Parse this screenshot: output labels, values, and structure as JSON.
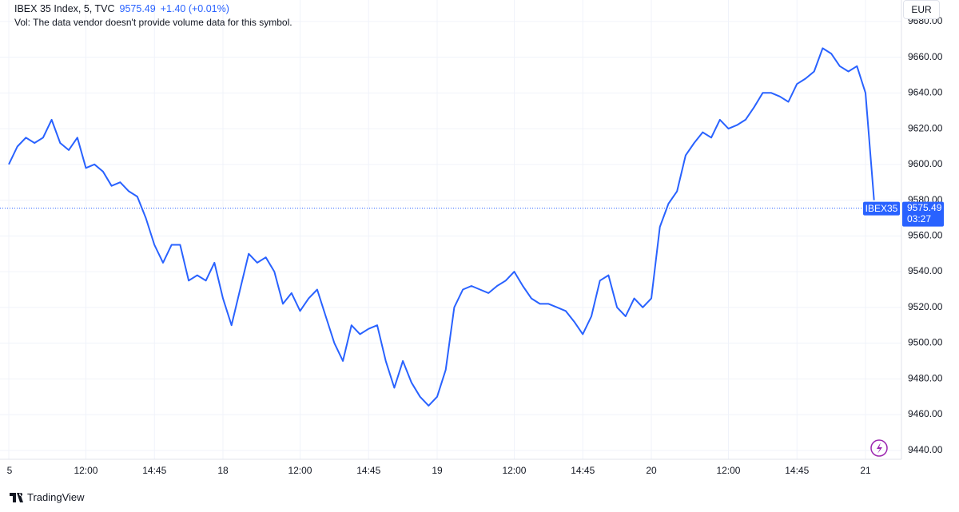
{
  "chart_data": {
    "type": "line",
    "title": "IBEX 35 Index, 5, TVC",
    "last_price": 9575.49,
    "change": "+1.40 (+0.01%)",
    "note": "Vol: The data vendor doesn't provide volume data for this symbol.",
    "currency": "EUR",
    "symbol": "IBEX35",
    "countdown": "03:27",
    "brand": "TradingView",
    "color": "#2962ff",
    "grid": true,
    "categories": [
      "5",
      null,
      null,
      null,
      null,
      null,
      null,
      null,
      null,
      "12:00",
      null,
      null,
      null,
      null,
      null,
      null,
      null,
      "14:45",
      null,
      null,
      null,
      null,
      null,
      null,
      null,
      "18",
      null,
      null,
      null,
      null,
      null,
      null,
      null,
      null,
      "12:00",
      null,
      null,
      null,
      null,
      null,
      null,
      null,
      "14:45",
      null,
      null,
      null,
      null,
      null,
      null,
      null,
      "19",
      null,
      null,
      null,
      null,
      null,
      null,
      null,
      null,
      "12:00",
      null,
      null,
      null,
      null,
      null,
      null,
      null,
      "14:45",
      null,
      null,
      null,
      null,
      null,
      null,
      null,
      "20",
      null,
      null,
      null,
      null,
      null,
      null,
      null,
      null,
      "12:00",
      null,
      null,
      null,
      null,
      null,
      null,
      null,
      "14:45",
      null,
      null,
      null,
      null,
      null,
      null,
      null,
      "21",
      null
    ],
    "values": [
      9600,
      9610,
      9615,
      9612,
      9615,
      9625,
      9612,
      9608,
      9615,
      9598,
      9600,
      9596,
      9588,
      9590,
      9585,
      9582,
      9570,
      9555,
      9545,
      9555,
      9555,
      9535,
      9538,
      9535,
      9545,
      9525,
      9510,
      9530,
      9550,
      9545,
      9548,
      9540,
      9522,
      9528,
      9518,
      9525,
      9530,
      9515,
      9500,
      9490,
      9510,
      9505,
      9508,
      9510,
      9490,
      9475,
      9490,
      9478,
      9470,
      9465,
      9470,
      9485,
      9520,
      9530,
      9532,
      9530,
      9528,
      9532,
      9535,
      9540,
      9532,
      9525,
      9522,
      9522,
      9520,
      9518,
      9512,
      9505,
      9515,
      9535,
      9538,
      9520,
      9515,
      9525,
      9520,
      9525,
      9565,
      9578,
      9585,
      9605,
      9612,
      9618,
      9615,
      9625,
      9620,
      9622,
      9625,
      9632,
      9640,
      9640,
      9638,
      9635,
      9645,
      9648,
      9652,
      9665,
      9662,
      9655,
      9652,
      9655,
      9640,
      9580
    ],
    "ylim": [
      9435,
      9692
    ],
    "yticks": [
      {
        "value": 9440,
        "label": "9440.00"
      },
      {
        "value": 9460,
        "label": "9460.00"
      },
      {
        "value": 9480,
        "label": "9480.00"
      },
      {
        "value": 9500,
        "label": "9500.00"
      },
      {
        "value": 9520,
        "label": "9520.00"
      },
      {
        "value": 9540,
        "label": "9540.00"
      },
      {
        "value": 9560,
        "label": "9560.00"
      },
      {
        "value": 9580,
        "label": "9580.00"
      },
      {
        "value": 9600,
        "label": "9600.00"
      },
      {
        "value": 9620,
        "label": "9620.00"
      },
      {
        "value": 9640,
        "label": "9640.00"
      },
      {
        "value": 9660,
        "label": "9660.00"
      },
      {
        "value": 9680,
        "label": "9680.00"
      }
    ]
  }
}
